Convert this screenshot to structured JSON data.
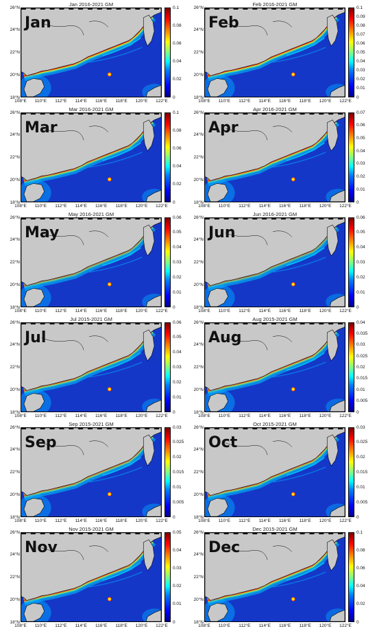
{
  "axes": {
    "y_ticks": [
      "26°N",
      "24°N",
      "22°N",
      "20°N",
      "18°N"
    ],
    "x_ticks": [
      "108°E",
      "110°E",
      "112°E",
      "114°E",
      "116°E",
      "118°E",
      "120°E",
      "122°E"
    ]
  },
  "colors": {
    "land": "#c8c8c8",
    "ocean_low": "#1537c8",
    "colormap": [
      "#00008f",
      "#0000ff",
      "#0080ff",
      "#00ffff",
      "#80ff80",
      "#ffff00",
      "#ff8000",
      "#ff0000",
      "#800000"
    ]
  },
  "panels": [
    {
      "month": "Jan",
      "title": "Jan 2016-2021 GM",
      "colorbar_ticks": [
        "0.1",
        "0.08",
        "0.06",
        "0.04",
        "0.02",
        "0"
      ],
      "intensity": 0.95
    },
    {
      "month": "Feb",
      "title": "Feb 2016-2021 GM",
      "colorbar_ticks": [
        "0.1",
        "0.09",
        "0.08",
        "0.07",
        "0.06",
        "0.05",
        "0.04",
        "0.03",
        "0.02",
        "0.01",
        "0"
      ],
      "intensity": 0.95
    },
    {
      "month": "Mar",
      "title": "Mar 2016-2021 GM",
      "colorbar_ticks": [
        "0.1",
        "0.08",
        "0.06",
        "0.04",
        "0.02",
        "0"
      ],
      "intensity": 0.8
    },
    {
      "month": "Apr",
      "title": "Apr 2016-2021 GM",
      "colorbar_ticks": [
        "0.07",
        "0.06",
        "0.05",
        "0.04",
        "0.03",
        "0.02",
        "0.01",
        "0"
      ],
      "intensity": 0.85
    },
    {
      "month": "May",
      "title": "May 2016-2021 GM",
      "colorbar_ticks": [
        "0.06",
        "0.05",
        "0.04",
        "0.03",
        "0.02",
        "0.01",
        "0"
      ],
      "intensity": 0.55
    },
    {
      "month": "Jun",
      "title": "Jun 2016-2021 GM",
      "colorbar_ticks": [
        "0.06",
        "0.05",
        "0.04",
        "0.03",
        "0.02",
        "0.01",
        "0"
      ],
      "intensity": 0.5
    },
    {
      "month": "Jul",
      "title": "Jul 2015-2021 GM",
      "colorbar_ticks": [
        "0.06",
        "0.05",
        "0.04",
        "0.03",
        "0.02",
        "0.01",
        "0"
      ],
      "intensity": 0.7
    },
    {
      "month": "Aug",
      "title": "Aug 2015-2021 GM",
      "colorbar_ticks": [
        "0.04",
        "0.035",
        "0.03",
        "0.025",
        "0.02",
        "0.015",
        "0.01",
        "0.005",
        "0"
      ],
      "intensity": 0.75
    },
    {
      "month": "Sep",
      "title": "Sep 2015-2021 GM",
      "colorbar_ticks": [
        "0.03",
        "0.025",
        "0.02",
        "0.015",
        "0.01",
        "0.005",
        "0"
      ],
      "intensity": 0.65
    },
    {
      "month": "Oct",
      "title": "Oct 2015-2021 GM",
      "colorbar_ticks": [
        "0.03",
        "0.025",
        "0.02",
        "0.015",
        "0.01",
        "0.005",
        "0"
      ],
      "intensity": 0.7
    },
    {
      "month": "Nov",
      "title": "Nov 2015-2021 GM",
      "colorbar_ticks": [
        "0.05",
        "0.04",
        "0.03",
        "0.02",
        "0.01",
        "0"
      ],
      "intensity": 0.8
    },
    {
      "month": "Dec",
      "title": "Dec 2015-2021 GM",
      "colorbar_ticks": [
        "0.1",
        "0.08",
        "0.06",
        "0.04",
        "0.02",
        "0"
      ],
      "intensity": 0.85
    }
  ]
}
